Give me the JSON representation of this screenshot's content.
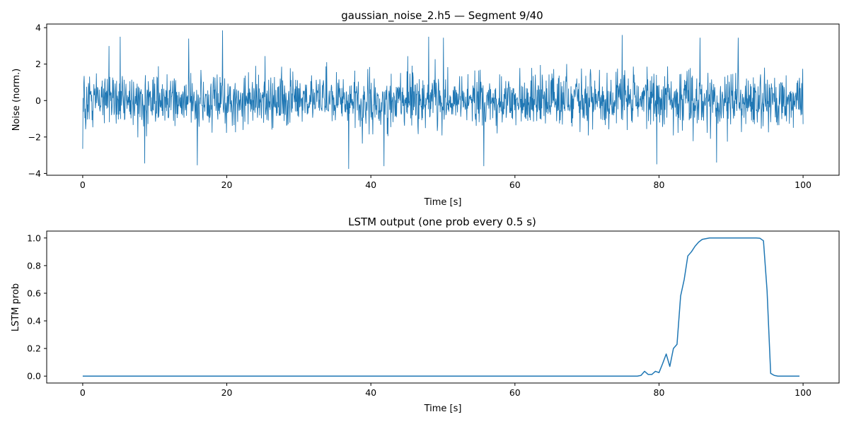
{
  "chart_data": [
    {
      "type": "line",
      "title": "gaussian_noise_2.h5 — Segment 9/40",
      "xlabel": "Time [s]",
      "ylabel": "Noise (norm.)",
      "xlim": [
        -5,
        105
      ],
      "ylim": [
        -4.1,
        4.2
      ],
      "xticks": [
        0,
        20,
        40,
        60,
        80,
        100
      ],
      "yticks": [
        -4,
        -2,
        0,
        2,
        4
      ],
      "line_color": "#1f77b4",
      "x_range": [
        0,
        100
      ],
      "sample_count": 2000,
      "noise_std": 0.75,
      "noise_seed": 9,
      "peaks": [
        {
          "t": 0.0,
          "v": -2.65
        },
        {
          "t": 5.2,
          "v": 3.5
        },
        {
          "t": 8.6,
          "v": -3.45
        },
        {
          "t": 14.7,
          "v": 3.4
        },
        {
          "t": 15.9,
          "v": -3.55
        },
        {
          "t": 19.4,
          "v": 3.85
        },
        {
          "t": 36.9,
          "v": -3.75
        },
        {
          "t": 41.8,
          "v": -3.6
        },
        {
          "t": 48.0,
          "v": 3.5
        },
        {
          "t": 50.1,
          "v": 3.45
        },
        {
          "t": 55.7,
          "v": -3.6
        },
        {
          "t": 74.9,
          "v": 3.6
        },
        {
          "t": 79.7,
          "v": -3.5
        },
        {
          "t": 85.7,
          "v": 3.45
        },
        {
          "t": 88.0,
          "v": -3.4
        },
        {
          "t": 91.0,
          "v": 3.45
        }
      ]
    },
    {
      "type": "line",
      "title": "LSTM output (one prob every 0.5 s)",
      "xlabel": "Time [s]",
      "ylabel": "LSTM prob",
      "xlim": [
        -5,
        105
      ],
      "ylim": [
        -0.05,
        1.05
      ],
      "xticks": [
        0,
        20,
        40,
        60,
        80,
        100
      ],
      "yticks": [
        "0.0",
        "0.2",
        "0.4",
        "0.6",
        "0.8",
        "1.0"
      ],
      "line_color": "#1f77b4",
      "x": [
        0,
        77,
        77.5,
        78,
        78.5,
        79,
        79.5,
        80,
        80.5,
        81,
        81.5,
        82,
        82.5,
        83,
        83.5,
        84,
        84.5,
        85,
        85.5,
        86,
        86.5,
        87,
        87.5,
        88,
        93.5,
        94,
        94.5,
        95,
        95.5,
        96,
        96.5,
        99.5
      ],
      "y": [
        0.0,
        0.0,
        0.005,
        0.035,
        0.012,
        0.012,
        0.035,
        0.025,
        0.09,
        0.16,
        0.07,
        0.2,
        0.23,
        0.58,
        0.7,
        0.87,
        0.9,
        0.94,
        0.97,
        0.99,
        0.995,
        1.0,
        1.0,
        1.0,
        1.0,
        0.998,
        0.98,
        0.62,
        0.02,
        0.005,
        0.0,
        0.0
      ]
    }
  ]
}
